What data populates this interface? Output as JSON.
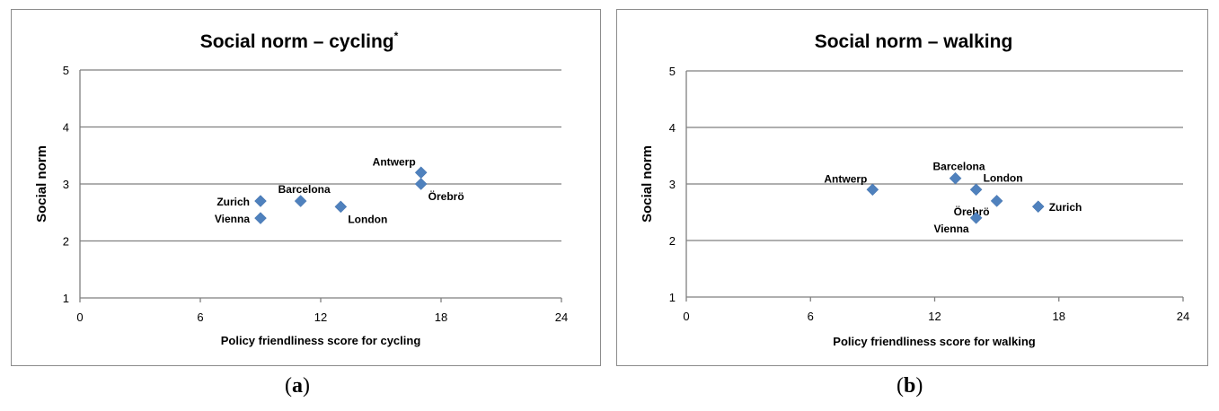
{
  "captions": {
    "a": {
      "open": "(",
      "letter": "a",
      "close": ")"
    },
    "b": {
      "open": "(",
      "letter": "b",
      "close": ")"
    }
  },
  "chart_data": [
    {
      "type": "scatter",
      "title": "Social norm – cycling",
      "title_marker": "*",
      "xlabel": "Policy friendliness score for cycling",
      "ylabel": "Social norm",
      "xlim": [
        0,
        24
      ],
      "ylim": [
        1,
        5
      ],
      "xticks": [
        0,
        6,
        12,
        18,
        24
      ],
      "yticks": [
        1,
        2,
        3,
        4,
        5
      ],
      "grid": "horizontal",
      "marker_color": "#4f81bd",
      "points": [
        {
          "label": "Antwerp",
          "x": 17,
          "y": 3.2,
          "label_pos": "above-left"
        },
        {
          "label": "Örebrö",
          "x": 17,
          "y": 3.0,
          "label_pos": "below-right"
        },
        {
          "label": "Barcelona",
          "x": 11,
          "y": 2.7,
          "label_pos": "above"
        },
        {
          "label": "Zurich",
          "x": 9,
          "y": 2.7,
          "label_pos": "left"
        },
        {
          "label": "London",
          "x": 13,
          "y": 2.6,
          "label_pos": "below-right"
        },
        {
          "label": "Vienna",
          "x": 9,
          "y": 2.4,
          "label_pos": "left"
        }
      ]
    },
    {
      "type": "scatter",
      "title": "Social norm – walking",
      "title_marker": "",
      "xlabel": "Policy friendliness score for walking",
      "ylabel": "Social norm",
      "xlim": [
        0,
        24
      ],
      "ylim": [
        1,
        5
      ],
      "xticks": [
        0,
        6,
        12,
        18,
        24
      ],
      "yticks": [
        1,
        2,
        3,
        4,
        5
      ],
      "grid": "horizontal",
      "marker_color": "#4f81bd",
      "points": [
        {
          "label": "Antwerp",
          "x": 9,
          "y": 2.9,
          "label_pos": "above-left"
        },
        {
          "label": "Barcelona",
          "x": 13,
          "y": 3.1,
          "label_pos": "above"
        },
        {
          "label": "London",
          "x": 14,
          "y": 2.9,
          "label_pos": "above-right"
        },
        {
          "label": "Örebrö",
          "x": 15,
          "y": 2.7,
          "label_pos": "below-left"
        },
        {
          "label": "Zurich",
          "x": 17,
          "y": 2.6,
          "label_pos": "right"
        },
        {
          "label": "Vienna",
          "x": 14,
          "y": 2.4,
          "label_pos": "below-left"
        }
      ]
    }
  ]
}
